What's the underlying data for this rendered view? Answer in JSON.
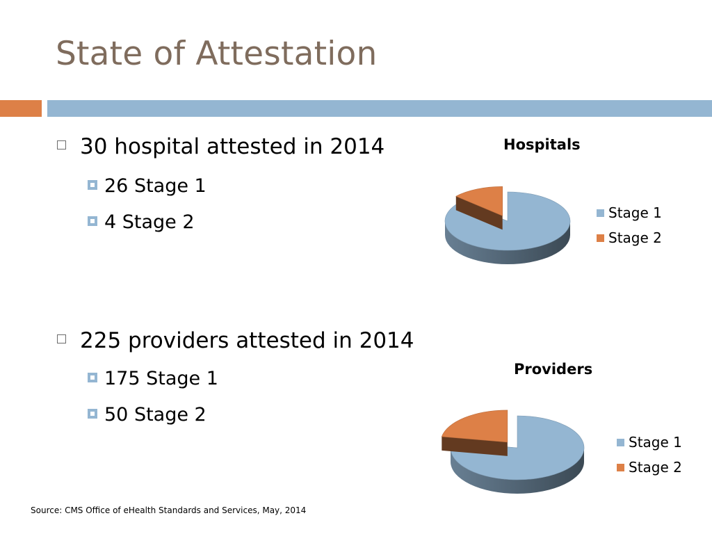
{
  "slide": {
    "title": "State of Attestation",
    "source": "Source: CMS Office of eHealth Standards and Services, May, 2014"
  },
  "bullets": {
    "hospitals": {
      "main": "30 hospital attested in 2014",
      "sub": [
        "26 Stage 1",
        "4 Stage 2"
      ]
    },
    "providers": {
      "main": "225 providers attested in 2014",
      "sub": [
        "175 Stage 1",
        "50 Stage 2"
      ]
    }
  },
  "colors": {
    "title": "#7f6c5d",
    "band_orange": "#dd8047",
    "band_blue": "#94b6d2",
    "stage1": "#94b6d2",
    "stage2": "#dd8047"
  },
  "chart_data": [
    {
      "type": "pie",
      "style": "3d exploded",
      "title": "Hospitals",
      "categories": [
        "Stage 1",
        "Stage 2"
      ],
      "values": [
        26,
        4
      ],
      "colors": [
        "#94b6d2",
        "#dd8047"
      ],
      "legend": "right",
      "exploded": "Stage 2"
    },
    {
      "type": "pie",
      "style": "3d exploded",
      "title": "Providers",
      "categories": [
        "Stage 1",
        "Stage 2"
      ],
      "values": [
        175,
        50
      ],
      "colors": [
        "#94b6d2",
        "#dd8047"
      ],
      "legend": "right",
      "exploded": "Stage 2"
    }
  ]
}
